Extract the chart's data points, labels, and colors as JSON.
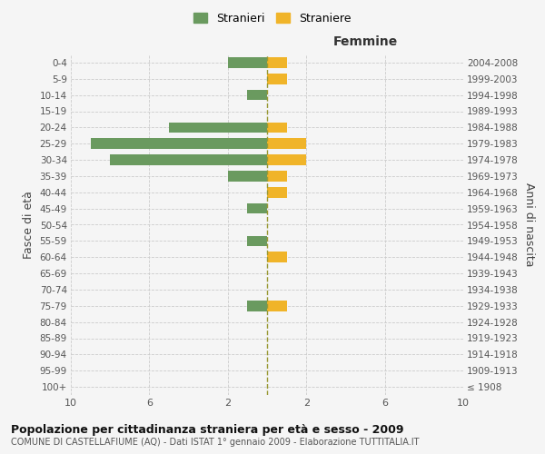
{
  "age_groups": [
    "100+",
    "95-99",
    "90-94",
    "85-89",
    "80-84",
    "75-79",
    "70-74",
    "65-69",
    "60-64",
    "55-59",
    "50-54",
    "45-49",
    "40-44",
    "35-39",
    "30-34",
    "25-29",
    "20-24",
    "15-19",
    "10-14",
    "5-9",
    "0-4"
  ],
  "birth_years": [
    "≤ 1908",
    "1909-1913",
    "1914-1918",
    "1919-1923",
    "1924-1928",
    "1929-1933",
    "1934-1938",
    "1939-1943",
    "1944-1948",
    "1949-1953",
    "1954-1958",
    "1959-1963",
    "1964-1968",
    "1969-1973",
    "1974-1978",
    "1979-1983",
    "1984-1988",
    "1989-1993",
    "1994-1998",
    "1999-2003",
    "2004-2008"
  ],
  "males": [
    0,
    0,
    0,
    0,
    0,
    1,
    0,
    0,
    0,
    1,
    0,
    1,
    0,
    2,
    8,
    9,
    5,
    0,
    1,
    0,
    2
  ],
  "females": [
    0,
    0,
    0,
    0,
    0,
    1,
    0,
    0,
    1,
    0,
    0,
    0,
    1,
    1,
    2,
    2,
    1,
    0,
    0,
    1,
    1
  ],
  "male_color": "#6a9a5f",
  "female_color": "#f0b429",
  "background_color": "#f5f5f5",
  "title": "Popolazione per cittadinanza straniera per età e sesso - 2009",
  "subtitle": "COMUNE DI CASTELLAFIUME (AQ) - Dati ISTAT 1° gennaio 2009 - Elaborazione TUTTITALIA.IT",
  "xlabel_right": "Femmine",
  "ylabel_left": "Fasce di età",
  "ylabel_right": "Anni di nascita",
  "legend_males": "Stranieri",
  "legend_females": "Straniere",
  "xlim": 10,
  "title_fontsize": 9,
  "subtitle_fontsize": 7
}
